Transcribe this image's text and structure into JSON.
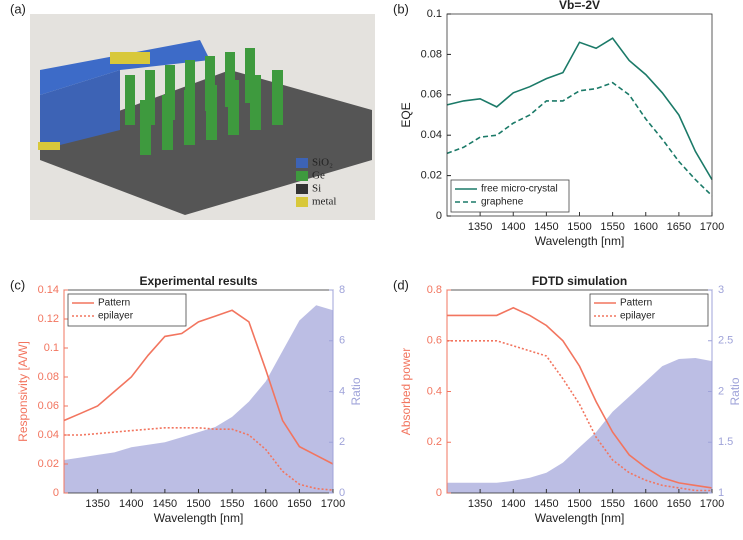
{
  "illustration": {
    "label": "(a)",
    "legend": [
      "SiO₂",
      "Ge",
      "Si",
      "metal"
    ]
  },
  "chart_data": [
    {
      "type": "line",
      "label": "(b)",
      "title": "Vb=-2V",
      "xlabel": "Wavelength [nm]",
      "ylabel": "EQE",
      "x": [
        1300,
        1325,
        1350,
        1375,
        1400,
        1425,
        1450,
        1475,
        1500,
        1525,
        1550,
        1575,
        1600,
        1625,
        1650,
        1675,
        1700
      ],
      "xlim": [
        1300,
        1700
      ],
      "xticks": [
        1350,
        1400,
        1450,
        1500,
        1550,
        1600,
        1650,
        1700
      ],
      "ylim": [
        0,
        0.1
      ],
      "yticks": [
        0,
        0.02,
        0.04,
        0.06,
        0.08,
        0.1
      ],
      "legend": "lower left",
      "series": [
        {
          "name": "free micro-crystal",
          "color": "#1b7a68",
          "style": "solid",
          "values": [
            0.055,
            0.057,
            0.058,
            0.054,
            0.061,
            0.064,
            0.068,
            0.071,
            0.086,
            0.083,
            0.088,
            0.077,
            0.07,
            0.061,
            0.05,
            0.032,
            0.018
          ]
        },
        {
          "name": "graphene",
          "color": "#1b7a68",
          "style": "dashed",
          "values": [
            0.031,
            0.034,
            0.039,
            0.04,
            0.046,
            0.05,
            0.057,
            0.057,
            0.062,
            0.063,
            0.066,
            0.06,
            0.048,
            0.038,
            0.027,
            0.018,
            0.01
          ]
        }
      ]
    },
    {
      "type": "line",
      "label": "(c)",
      "title": "Experimental results",
      "xlabel": "Wavelength [nm]",
      "ylabel": "Responsivity [A/W]",
      "y2label": "Ratio",
      "x": [
        1300,
        1325,
        1350,
        1375,
        1400,
        1425,
        1450,
        1475,
        1500,
        1525,
        1550,
        1575,
        1600,
        1625,
        1650,
        1675,
        1700
      ],
      "xlim": [
        1300,
        1700
      ],
      "xticks": [
        1350,
        1400,
        1450,
        1500,
        1550,
        1600,
        1650,
        1700
      ],
      "ylim": [
        0,
        0.14
      ],
      "yticks": [
        0,
        0.02,
        0.04,
        0.06,
        0.08,
        0.1,
        0.12,
        0.14
      ],
      "y2lim": [
        0,
        8
      ],
      "y2ticks": [
        0,
        2,
        4,
        6,
        8
      ],
      "legend": "upper left",
      "series": [
        {
          "name": "Pattern",
          "color": "#f2755f",
          "style": "solid",
          "values": [
            0.05,
            0.055,
            0.06,
            0.07,
            0.08,
            0.095,
            0.108,
            0.11,
            0.118,
            0.122,
            0.126,
            0.118,
            0.085,
            0.05,
            0.032,
            0.026,
            0.02
          ]
        },
        {
          "name": "epilayer",
          "color": "#f2755f",
          "style": "dotted",
          "values": [
            0.04,
            0.04,
            0.041,
            0.042,
            0.043,
            0.044,
            0.045,
            0.045,
            0.045,
            0.044,
            0.044,
            0.04,
            0.03,
            0.015,
            0.006,
            0.003,
            0.002
          ]
        },
        {
          "color": "#9fa3d9",
          "style": "area",
          "axis": "y2",
          "values": [
            1.3,
            1.4,
            1.5,
            1.6,
            1.8,
            1.9,
            2.0,
            2.2,
            2.4,
            2.6,
            3.0,
            3.6,
            4.4,
            5.6,
            6.8,
            7.4,
            7.2
          ]
        }
      ]
    },
    {
      "type": "line",
      "label": "(d)",
      "title": "FDTD simulation",
      "xlabel": "Wavelength [nm]",
      "ylabel": "Absorbed power",
      "y2label": "Ratio",
      "x": [
        1300,
        1325,
        1350,
        1375,
        1400,
        1425,
        1450,
        1475,
        1500,
        1525,
        1550,
        1575,
        1600,
        1625,
        1650,
        1675,
        1700
      ],
      "xlim": [
        1300,
        1700
      ],
      "xticks": [
        1350,
        1400,
        1450,
        1500,
        1550,
        1600,
        1650,
        1700
      ],
      "ylim": [
        0,
        0.8
      ],
      "yticks": [
        0,
        0.2,
        0.4,
        0.6,
        0.8
      ],
      "y2lim": [
        1,
        3
      ],
      "y2ticks": [
        1,
        1.5,
        2,
        2.5,
        3
      ],
      "legend": "upper right",
      "series": [
        {
          "name": "Pattern",
          "color": "#f2755f",
          "style": "solid",
          "values": [
            0.7,
            0.7,
            0.7,
            0.7,
            0.73,
            0.7,
            0.66,
            0.6,
            0.5,
            0.36,
            0.24,
            0.15,
            0.1,
            0.06,
            0.04,
            0.03,
            0.02
          ]
        },
        {
          "name": "epilayer",
          "color": "#f2755f",
          "style": "dotted",
          "values": [
            0.6,
            0.6,
            0.6,
            0.6,
            0.58,
            0.56,
            0.54,
            0.45,
            0.35,
            0.22,
            0.13,
            0.08,
            0.05,
            0.03,
            0.02,
            0.01,
            0.01
          ]
        },
        {
          "color": "#9fa3d9",
          "style": "area",
          "axis": "y2",
          "values": [
            1.1,
            1.1,
            1.1,
            1.1,
            1.12,
            1.15,
            1.2,
            1.3,
            1.45,
            1.6,
            1.8,
            1.95,
            2.1,
            2.25,
            2.32,
            2.33,
            2.3
          ]
        }
      ]
    }
  ]
}
